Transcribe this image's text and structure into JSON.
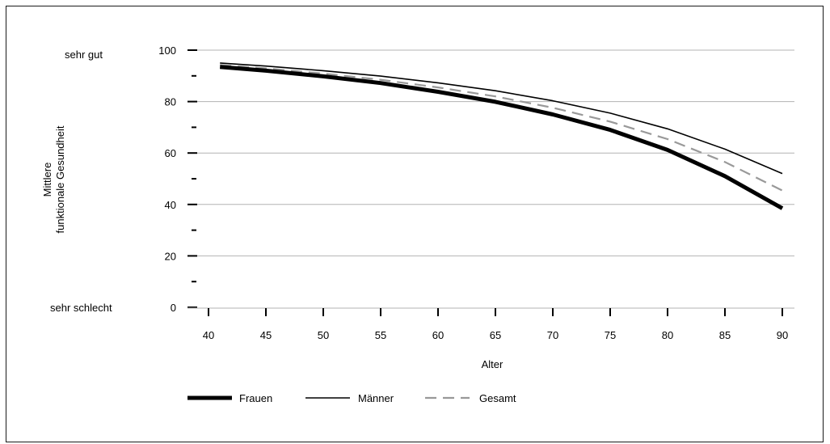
{
  "chart_data": {
    "type": "line",
    "xlabel": "Alter",
    "ylabel": [
      "Mittlere",
      "funktionale Gesundheit"
    ],
    "ylim": [
      0,
      100
    ],
    "xlim": [
      40,
      90
    ],
    "yticks": [
      0,
      20,
      40,
      60,
      80,
      100
    ],
    "xticks": [
      40,
      45,
      50,
      55,
      60,
      65,
      70,
      75,
      80,
      85,
      90
    ],
    "y_category_labels": {
      "top": "sehr gut",
      "bottom": "sehr schlecht"
    },
    "grid": "horizontal",
    "x": [
      41,
      45,
      50,
      55,
      60,
      65,
      70,
      75,
      80,
      85,
      90
    ],
    "series": [
      {
        "name": "Frauen",
        "style": "thick-solid",
        "color": "#000000",
        "values": [
          93.5,
          92.0,
          89.8,
          87.2,
          83.8,
          79.9,
          75.0,
          69.0,
          61.2,
          51.0,
          38.5
        ]
      },
      {
        "name": "Männer",
        "style": "thin-solid",
        "color": "#000000",
        "values": [
          95.0,
          93.8,
          92.0,
          89.9,
          87.3,
          84.2,
          80.3,
          75.5,
          69.4,
          61.5,
          52.0
        ]
      },
      {
        "name": "Gesamt",
        "style": "dashed",
        "color": "#999999",
        "values": [
          94.2,
          92.9,
          90.9,
          88.5,
          85.5,
          82.0,
          77.6,
          72.2,
          65.4,
          56.5,
          45.4
        ]
      }
    ],
    "legend_position": "bottom-left"
  }
}
